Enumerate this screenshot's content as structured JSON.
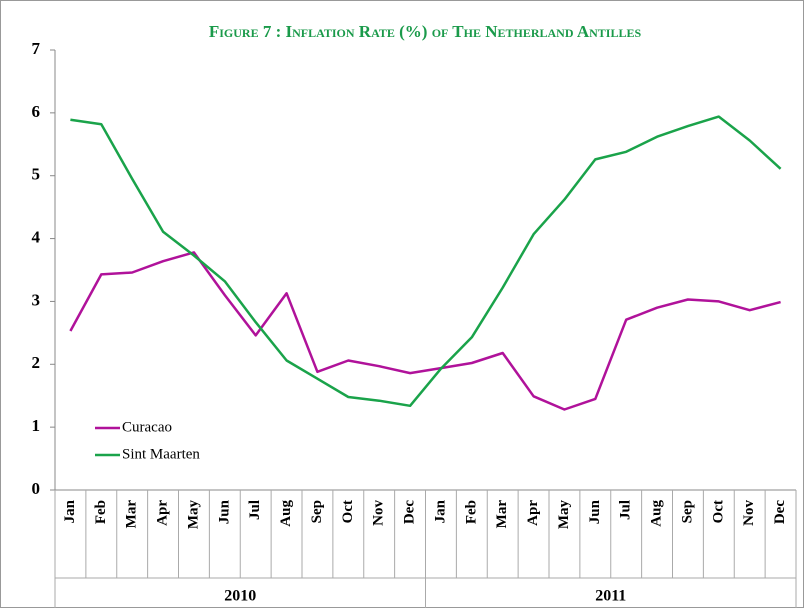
{
  "chart_data": {
    "type": "line",
    "title": "Figure 7 : Inflation Rate (%) of The Netherland Antilles",
    "categories": [
      "Jan",
      "Feb",
      "Mar",
      "Apr",
      "May",
      "Jun",
      "Jul",
      "Aug",
      "Sep",
      "Oct",
      "Nov",
      "Dec",
      "Jan",
      "Feb",
      "Mar",
      "Apr",
      "May",
      "Jun",
      "Jul",
      "Aug",
      "Sep",
      "Oct",
      "Nov",
      "Dec"
    ],
    "category_groups": [
      "2010",
      "2011"
    ],
    "series": [
      {
        "name": "Curacao",
        "color": "#b0129a",
        "values": [
          2.53,
          3.43,
          3.46,
          3.64,
          3.78,
          3.1,
          2.46,
          3.13,
          1.88,
          2.06,
          1.97,
          1.86,
          1.94,
          2.02,
          2.18,
          1.49,
          1.28,
          1.45,
          2.71,
          2.9,
          3.03,
          3.0,
          2.86,
          2.99
        ]
      },
      {
        "name": "Sint Maarten",
        "color": "#1aa34a",
        "values": [
          5.89,
          5.82,
          4.95,
          4.11,
          3.73,
          3.32,
          2.67,
          2.06,
          1.77,
          1.48,
          1.42,
          1.34,
          1.93,
          2.43,
          3.22,
          4.07,
          4.62,
          5.26,
          5.38,
          5.62,
          5.79,
          5.94,
          5.56,
          5.11
        ]
      }
    ],
    "ylim": [
      0,
      7
    ],
    "yticks": [
      0,
      1,
      2,
      3,
      4,
      5,
      6,
      7
    ],
    "grid": false,
    "legend": "left"
  }
}
